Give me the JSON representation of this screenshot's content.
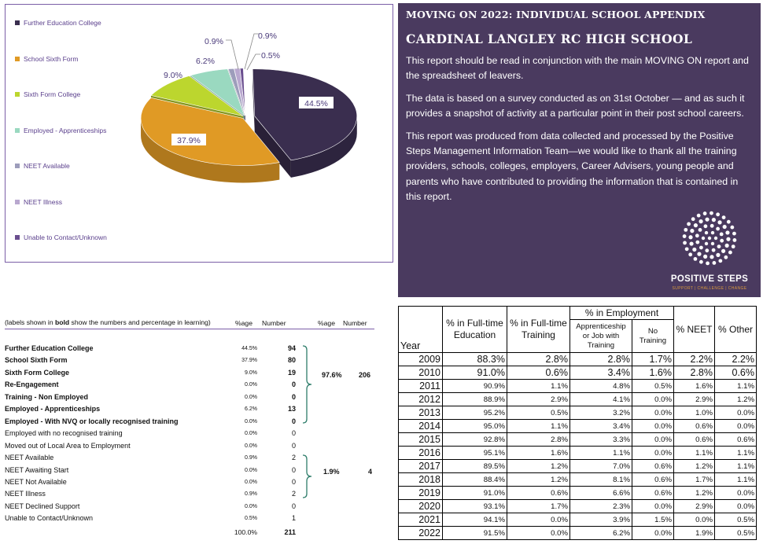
{
  "chart_data": {
    "type": "pie",
    "categories": [
      "Further Education College",
      "School Sixth Form",
      "Sixth Form College",
      "Employed - Apprenticeships",
      "NEET Available",
      "NEET Illness",
      "Unable to Contact/Unknown"
    ],
    "values": [
      44.5,
      37.9,
      9.0,
      6.2,
      0.9,
      0.9,
      0.5
    ],
    "data_labels": [
      "44.5%",
      "37.9%",
      "9.0%",
      "6.2%",
      "0.9%",
      "0.9%",
      "0.5%"
    ],
    "colors": [
      "#3a2e4f",
      "#e09a25",
      "#bcd62e",
      "#9ad9c0",
      "#9d9dbb",
      "#b9a8cf",
      "#6a4e8f"
    ],
    "legend_position": "left"
  },
  "info": {
    "header": "MOVING ON 2022: INDIVIDUAL SCHOOL APPENDIX",
    "school": "CARDINAL LANGLEY RC HIGH SCHOOL",
    "para1": "This report should be read in conjunction with the main MOVING ON report and the spreadsheet of leavers.",
    "para2": "The data is based on a survey conducted as on 31st October — and as such it provides a snapshot of activity at a particular point in their post school careers.",
    "para3": "This report was produced from data collected and processed by the Positive Steps Management Information Team—we would like to thank all the training providers, schools, colleges, employers, Career Advisers, young people and parents who have contributed to providing the information that is contained in this report.",
    "logo_name": "POSITIVE STEPS",
    "logo_tagline": "SUPPORT | CHALLENGE | CHANGE"
  },
  "destinations": {
    "caption_pre": "(labels shown in ",
    "caption_bold": "bold",
    "caption_post": " show the numbers and percentage in learning)",
    "col_pct": "%age",
    "col_number": "Number",
    "col_pct2": "%age",
    "col_number2": "Number",
    "rows": [
      {
        "label": "Further Education College",
        "pct": "44.5%",
        "num": "94"
      },
      {
        "label": "School Sixth Form",
        "pct": "37.9%",
        "num": "80"
      },
      {
        "label": "Sixth Form College",
        "pct": "9.0%",
        "num": "19"
      },
      {
        "label": "Re-Engagement",
        "pct": "0.0%",
        "num": "0"
      },
      {
        "label": "Training - Non Employed",
        "pct": "0.0%",
        "num": "0"
      },
      {
        "label": "Employed - Apprenticeships",
        "pct": "6.2%",
        "num": "13"
      },
      {
        "label": "Employed - With NVQ or locally recognised training",
        "pct": "0.0%",
        "num": "0"
      },
      {
        "label": "Employed with no recognised training",
        "pct": "0.0%",
        "num": "0"
      },
      {
        "label": "Moved out of Local Area to Employment",
        "pct": "0.0%",
        "num": "0"
      },
      {
        "label": "NEET Available",
        "pct": "0.9%",
        "num": "2"
      },
      {
        "label": "NEET Awaiting Start",
        "pct": "0.0%",
        "num": "0"
      },
      {
        "label": "NEET Not Available",
        "pct": "0.0%",
        "num": "0"
      },
      {
        "label": "NEET Illness",
        "pct": "0.9%",
        "num": "2"
      },
      {
        "label": "NEET Declined Support",
        "pct": "0.0%",
        "num": "0"
      },
      {
        "label": "Unable to Contact/Unknown",
        "pct": "0.5%",
        "num": "1"
      }
    ],
    "learning_pct": "97.6%",
    "learning_num": "206",
    "neet_pct": "1.9%",
    "neet_num": "4",
    "total_pct": "100.0%",
    "total_num": "211"
  },
  "history": {
    "year": "Year",
    "fte": "% in Full-time Education",
    "ftt": "% in Full-time Training",
    "emp": "% in Employment",
    "appr": "Apprenticeship or Job with Training",
    "notrain": "No Training",
    "neet": "% NEET",
    "other": "% Other",
    "rows": [
      [
        "2009",
        "88.3%",
        "2.8%",
        "2.8%",
        "1.7%",
        "2.2%",
        "2.2%"
      ],
      [
        "2010",
        "91.0%",
        "0.6%",
        "3.4%",
        "1.6%",
        "2.8%",
        "0.6%"
      ],
      [
        "2011",
        "90.9%",
        "1.1%",
        "4.8%",
        "0.5%",
        "1.6%",
        "1.1%"
      ],
      [
        "2012",
        "88.9%",
        "2.9%",
        "4.1%",
        "0.0%",
        "2.9%",
        "1.2%"
      ],
      [
        "2013",
        "95.2%",
        "0.5%",
        "3.2%",
        "0.0%",
        "1.0%",
        "0.0%"
      ],
      [
        "2014",
        "95.0%",
        "1.1%",
        "3.4%",
        "0.0%",
        "0.6%",
        "0.0%"
      ],
      [
        "2015",
        "92.8%",
        "2.8%",
        "3.3%",
        "0.0%",
        "0.6%",
        "0.6%"
      ],
      [
        "2016",
        "95.1%",
        "1.6%",
        "1.1%",
        "0.0%",
        "1.1%",
        "1.1%"
      ],
      [
        "2017",
        "89.5%",
        "1.2%",
        "7.0%",
        "0.6%",
        "1.2%",
        "1.1%"
      ],
      [
        "2018",
        "88.4%",
        "1.2%",
        "8.1%",
        "0.6%",
        "1.7%",
        "1.1%"
      ],
      [
        "2019",
        "91.0%",
        "0.6%",
        "6.6%",
        "0.6%",
        "1.2%",
        "0.0%"
      ],
      [
        "2020",
        "93.1%",
        "1.7%",
        "2.3%",
        "0.0%",
        "2.9%",
        "0.0%"
      ],
      [
        "2021",
        "94.1%",
        "0.0%",
        "3.9%",
        "1.5%",
        "0.0%",
        "0.5%"
      ],
      [
        "2022",
        "91.5%",
        "0.0%",
        "6.2%",
        "0.0%",
        "1.9%",
        "0.5%"
      ]
    ]
  }
}
